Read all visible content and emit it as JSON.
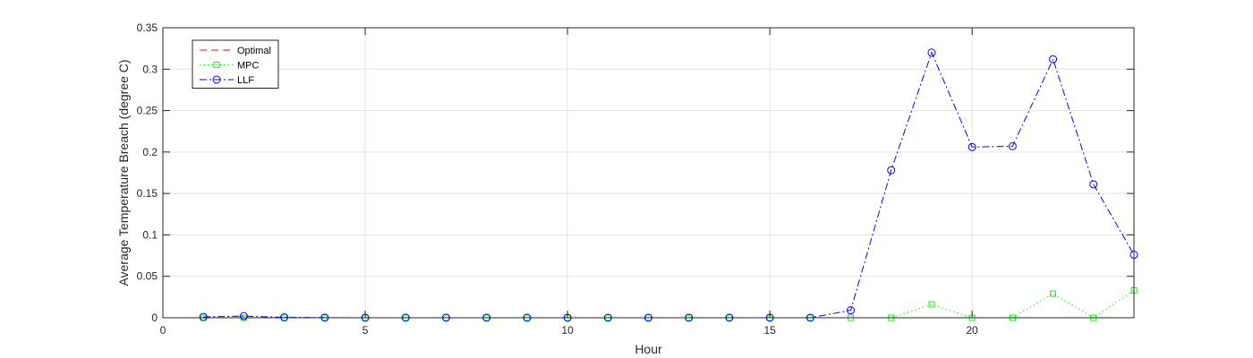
{
  "chart_data": {
    "type": "line",
    "title": "",
    "xlabel": "Hour",
    "ylabel": "Average Temperature Breach (degree C)",
    "xlim": [
      0,
      24
    ],
    "ylim": [
      0,
      0.35
    ],
    "xticks": [
      0,
      5,
      10,
      15,
      20
    ],
    "xtick_labels": [
      "0",
      "5",
      "10",
      "15",
      "20"
    ],
    "yticks": [
      0,
      0.05,
      0.1,
      0.15,
      0.2,
      0.25,
      0.3,
      0.35
    ],
    "ytick_labels": [
      "0",
      "0.05",
      "0.1",
      "0.15",
      "0.2",
      "0.25",
      "0.3",
      "0.35"
    ],
    "grid": true,
    "legend_position": "top-left",
    "x": [
      1,
      2,
      3,
      4,
      5,
      6,
      7,
      8,
      9,
      10,
      11,
      12,
      13,
      14,
      15,
      16,
      17,
      18,
      19,
      20,
      21,
      22,
      23,
      24
    ],
    "series": [
      {
        "name": "Optimal",
        "color": "#ff0000",
        "line_style": "dashed",
        "marker": "none",
        "values": [
          0,
          0,
          0,
          0,
          0,
          0,
          0,
          0,
          0,
          0,
          0,
          0,
          0,
          0,
          0,
          0,
          0,
          0,
          0,
          0,
          0,
          0,
          0,
          0
        ]
      },
      {
        "name": "MPC",
        "color": "#00ff00",
        "line_style": "dotted",
        "marker": "square",
        "values": [
          0,
          0,
          0,
          0,
          0,
          0,
          0,
          0,
          0,
          0,
          0,
          0,
          0,
          0,
          0,
          0,
          0,
          0,
          0.016,
          0,
          0,
          0.029,
          0,
          0.033
        ]
      },
      {
        "name": "LLF",
        "color": "#0000ff",
        "line_style": "dashdot",
        "marker": "circle",
        "values": [
          0.001,
          0.002,
          0.0005,
          0.0002,
          0,
          0,
          0,
          0,
          0,
          0,
          0,
          0,
          0,
          0,
          0,
          0,
          0.009,
          0.178,
          0.32,
          0.206,
          0.207,
          0.312,
          0.161,
          0.076
        ]
      }
    ]
  }
}
